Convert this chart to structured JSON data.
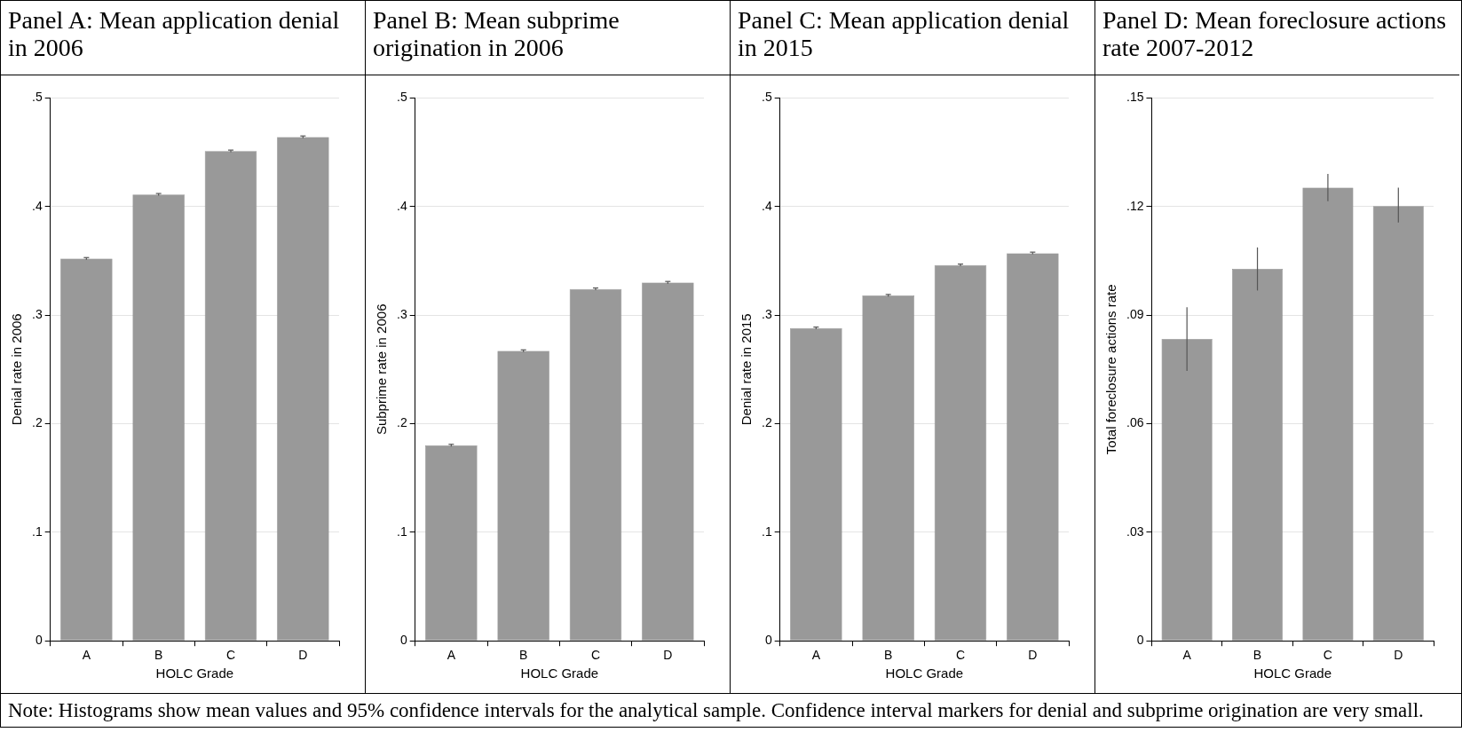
{
  "chart_data": [
    {
      "type": "bar",
      "title": "Panel A: Mean application denial in 2006",
      "xlabel": "HOLC Grade",
      "ylabel": "Denial rate in 2006",
      "categories": [
        "A",
        "B",
        "C",
        "D"
      ],
      "values": [
        0.352,
        0.411,
        0.451,
        0.464
      ],
      "errors": [
        0.001,
        0.001,
        0.001,
        0.001
      ],
      "color": "#999999",
      "ylim": [
        0,
        0.5
      ],
      "yticks": [
        {
          "value": 0,
          "label": "0"
        },
        {
          "value": 0.1,
          "label": ".1"
        },
        {
          "value": 0.2,
          "label": ".2"
        },
        {
          "value": 0.3,
          "label": ".3"
        },
        {
          "value": 0.4,
          "label": ".4"
        },
        {
          "value": 0.5,
          "label": ".5"
        }
      ],
      "grid": "y",
      "annotations": [
        "Note: Histograms show mean values and 95% confidence intervals for the analytical sample. Confidence interval markers for denial and subprime origination are very small."
      ]
    },
    {
      "type": "bar",
      "title": "Panel B: Mean subprime origination in 2006",
      "xlabel": "HOLC Grade",
      "ylabel": "Subprime rate in 2006",
      "categories": [
        "A",
        "B",
        "C",
        "D"
      ],
      "values": [
        0.18,
        0.267,
        0.324,
        0.33
      ],
      "errors": [
        0.001,
        0.001,
        0.001,
        0.001
      ],
      "color": "#999999",
      "ylim": [
        0,
        0.5
      ],
      "yticks": [
        {
          "value": 0,
          "label": "0"
        },
        {
          "value": 0.1,
          "label": ".1"
        },
        {
          "value": 0.2,
          "label": ".2"
        },
        {
          "value": 0.3,
          "label": ".3"
        },
        {
          "value": 0.4,
          "label": ".4"
        },
        {
          "value": 0.5,
          "label": ".5"
        }
      ],
      "grid": "y"
    },
    {
      "type": "bar",
      "title": "Panel C: Mean application denial in 2015",
      "xlabel": "HOLC Grade",
      "ylabel": "Denial rate in 2015",
      "categories": [
        "A",
        "B",
        "C",
        "D"
      ],
      "values": [
        0.288,
        0.318,
        0.346,
        0.357
      ],
      "errors": [
        0.001,
        0.001,
        0.001,
        0.001
      ],
      "color": "#999999",
      "ylim": [
        0,
        0.5
      ],
      "yticks": [
        {
          "value": 0,
          "label": "0"
        },
        {
          "value": 0.1,
          "label": ".1"
        },
        {
          "value": 0.2,
          "label": ".2"
        },
        {
          "value": 0.3,
          "label": ".3"
        },
        {
          "value": 0.4,
          "label": ".4"
        },
        {
          "value": 0.5,
          "label": ".5"
        }
      ],
      "grid": "y"
    },
    {
      "type": "bar",
      "title": "Panel D: Mean foreclosure actions rate 2007-2012",
      "xlabel": "HOLC Grade",
      "ylabel": "Total foreclosure actions rate",
      "categories": [
        "A",
        "B",
        "C",
        "D"
      ],
      "values": [
        0.0834,
        0.1028,
        0.1252,
        0.1201
      ],
      "errors": [
        [
          0.0746,
          0.0922
        ],
        [
          0.0968,
          0.1087
        ],
        [
          0.1215,
          0.129
        ],
        [
          0.1156,
          0.1252
        ]
      ],
      "color": "#999999",
      "ylim": [
        0,
        0.15
      ],
      "yticks": [
        {
          "value": 0,
          "label": "0"
        },
        {
          "value": 0.03,
          "label": ".03"
        },
        {
          "value": 0.06,
          "label": ".06"
        },
        {
          "value": 0.09,
          "label": ".09"
        },
        {
          "value": 0.12,
          "label": ".12"
        },
        {
          "value": 0.15,
          "label": ".15"
        }
      ],
      "grid": "y"
    }
  ]
}
